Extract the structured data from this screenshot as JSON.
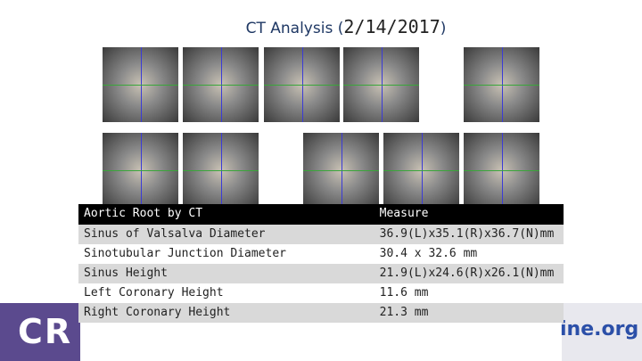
{
  "header": {
    "title_prefix": "CT Analysis (",
    "title_date": "2/14/2017",
    "title_suffix": ")"
  },
  "table": {
    "columns": [
      "Aortic Root by CT",
      "Measure"
    ],
    "rows": [
      [
        "Sinus of Valsalva Diameter",
        "36.9(L)x35.1(R)x36.7(N)mm"
      ],
      [
        "Sinotubular Junction Diameter",
        "30.4 x 32.6 mm"
      ],
      [
        "Sinus Height",
        "21.9(L)x24.6(R)x26.1(N)mm"
      ],
      [
        "Left Coronary Height",
        "11.6 mm"
      ],
      [
        "Right Coronary Height",
        "21.3 mm"
      ]
    ]
  },
  "footer": {
    "logo": "CR",
    "site": "ine.org"
  }
}
